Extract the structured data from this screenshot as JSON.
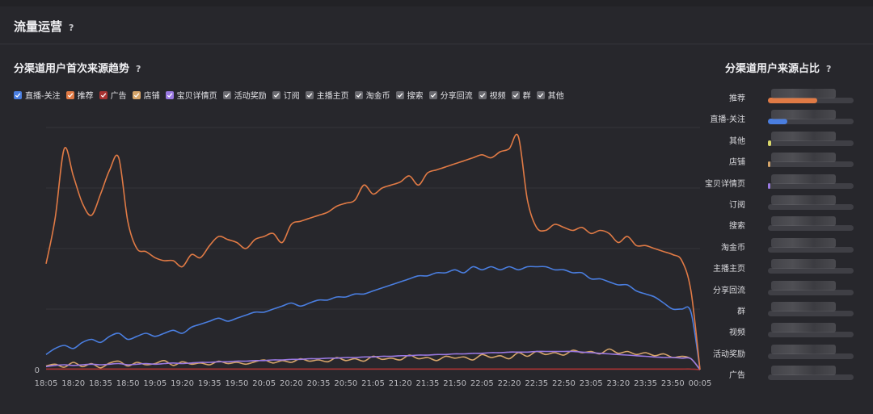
{
  "page": {
    "title": "流量运营",
    "help": "?"
  },
  "chart": {
    "title": "分渠道用户首次来源趋势",
    "help": "?"
  },
  "legend": [
    {
      "name": "直播-关注",
      "color": "#4a7ee0",
      "checked": true
    },
    {
      "name": "推荐",
      "color": "#e07a45",
      "checked": true
    },
    {
      "name": "广告",
      "color": "#a83232",
      "checked": true
    },
    {
      "name": "店铺",
      "color": "#d6a56a",
      "checked": true
    },
    {
      "name": "宝贝详情页",
      "color": "#9a79e2",
      "checked": true
    },
    {
      "name": "活动奖励",
      "color": "#6a6a70",
      "checked": true
    },
    {
      "name": "订阅",
      "color": "#6a6a70",
      "checked": true
    },
    {
      "name": "主播主页",
      "color": "#6a6a70",
      "checked": true
    },
    {
      "name": "淘金币",
      "color": "#6a6a70",
      "checked": true
    },
    {
      "name": "搜索",
      "color": "#6a6a70",
      "checked": true
    },
    {
      "name": "分享回流",
      "color": "#6a6a70",
      "checked": true
    },
    {
      "name": "视频",
      "color": "#6a6a70",
      "checked": true
    },
    {
      "name": "群",
      "color": "#6a6a70",
      "checked": true
    },
    {
      "name": "其他",
      "color": "#6a6a70",
      "checked": true
    }
  ],
  "chart_data": {
    "type": "line",
    "title": "分渠道用户首次来源趋势",
    "xlabel": "",
    "ylabel": "",
    "ylim": [
      0,
      400
    ],
    "yticks": [
      0
    ],
    "x": [
      "18:05",
      "18:10",
      "18:15",
      "18:20",
      "18:25",
      "18:30",
      "18:35",
      "18:40",
      "18:45",
      "18:50",
      "18:55",
      "19:00",
      "19:05",
      "19:10",
      "19:15",
      "19:20",
      "19:25",
      "19:30",
      "19:35",
      "19:40",
      "19:45",
      "19:50",
      "19:55",
      "20:00",
      "20:05",
      "20:10",
      "20:15",
      "20:20",
      "20:25",
      "20:30",
      "20:35",
      "20:40",
      "20:45",
      "20:50",
      "20:55",
      "21:00",
      "21:05",
      "21:10",
      "21:15",
      "21:20",
      "21:25",
      "21:30",
      "21:35",
      "21:40",
      "21:45",
      "21:50",
      "21:55",
      "22:00",
      "22:05",
      "22:10",
      "22:15",
      "22:20",
      "22:25",
      "22:30",
      "22:35",
      "22:40",
      "22:45",
      "22:50",
      "22:55",
      "23:00",
      "23:05",
      "23:10",
      "23:15",
      "23:20",
      "23:25",
      "23:30",
      "23:35",
      "23:40",
      "23:45",
      "23:50",
      "23:55",
      "00:00",
      "00:05"
    ],
    "xticks": [
      "18:05",
      "18:20",
      "18:35",
      "18:50",
      "19:05",
      "19:20",
      "19:35",
      "19:50",
      "20:05",
      "20:20",
      "20:35",
      "20:50",
      "21:05",
      "21:20",
      "21:35",
      "21:50",
      "22:05",
      "22:20",
      "22:35",
      "22:50",
      "23:05",
      "23:20",
      "23:35",
      "23:50",
      "00:05"
    ],
    "series": [
      {
        "name": "推荐",
        "color": "#e07a45",
        "values": [
          175,
          250,
          365,
          320,
          275,
          255,
          290,
          330,
          350,
          245,
          200,
          195,
          185,
          180,
          180,
          170,
          190,
          185,
          205,
          220,
          215,
          210,
          200,
          215,
          220,
          225,
          210,
          240,
          245,
          250,
          255,
          260,
          270,
          275,
          280,
          305,
          290,
          300,
          305,
          310,
          320,
          305,
          325,
          330,
          335,
          340,
          345,
          350,
          355,
          350,
          360,
          365,
          385,
          280,
          235,
          230,
          240,
          235,
          230,
          235,
          225,
          230,
          225,
          210,
          220,
          205,
          205,
          200,
          195,
          190,
          180,
          130,
          0
        ]
      },
      {
        "name": "直播-关注",
        "color": "#4a7ee0",
        "values": [
          25,
          35,
          40,
          35,
          45,
          50,
          45,
          55,
          60,
          50,
          55,
          60,
          55,
          60,
          65,
          60,
          70,
          75,
          80,
          85,
          80,
          85,
          90,
          95,
          95,
          100,
          105,
          110,
          105,
          110,
          115,
          115,
          120,
          120,
          125,
          125,
          130,
          135,
          140,
          145,
          150,
          155,
          155,
          160,
          160,
          165,
          160,
          170,
          165,
          170,
          165,
          170,
          165,
          170,
          170,
          170,
          165,
          165,
          160,
          160,
          150,
          150,
          145,
          140,
          140,
          130,
          125,
          120,
          110,
          100,
          100,
          95,
          0
        ]
      },
      {
        "name": "宝贝详情页",
        "color": "#9a79e2",
        "values": [
          5,
          7,
          8,
          7,
          8,
          9,
          8,
          9,
          10,
          8,
          9,
          10,
          9,
          10,
          11,
          10,
          11,
          12,
          12,
          13,
          13,
          14,
          14,
          15,
          15,
          16,
          16,
          17,
          17,
          18,
          18,
          19,
          19,
          20,
          20,
          21,
          21,
          22,
          22,
          23,
          23,
          24,
          24,
          25,
          25,
          26,
          26,
          27,
          27,
          28,
          28,
          29,
          29,
          29,
          30,
          30,
          30,
          30,
          30,
          29,
          28,
          27,
          26,
          25,
          24,
          23,
          22,
          21,
          20,
          20,
          19,
          18,
          0
        ]
      },
      {
        "name": "店铺",
        "color": "#d6a56a",
        "values": [
          6,
          9,
          4,
          12,
          5,
          10,
          3,
          11,
          14,
          6,
          12,
          8,
          10,
          15,
          7,
          13,
          9,
          11,
          8,
          14,
          10,
          12,
          9,
          13,
          16,
          11,
          15,
          12,
          18,
          14,
          16,
          13,
          20,
          15,
          18,
          14,
          22,
          17,
          19,
          16,
          24,
          18,
          20,
          15,
          22,
          19,
          21,
          16,
          25,
          20,
          23,
          18,
          28,
          22,
          30,
          25,
          28,
          24,
          32,
          28,
          30,
          26,
          34,
          27,
          30,
          25,
          28,
          23,
          26,
          20,
          22,
          18,
          0
        ]
      },
      {
        "name": "广告",
        "color": "#a83232",
        "values": [
          1,
          1,
          1,
          1,
          1,
          1,
          1,
          1,
          1,
          1,
          1,
          1,
          1,
          1,
          1,
          1,
          1,
          1,
          1,
          1,
          1,
          1,
          1,
          1,
          1,
          1,
          1,
          1,
          1,
          1,
          1,
          1,
          1,
          1,
          1,
          1,
          1,
          1,
          1,
          1,
          1,
          1,
          1,
          1,
          1,
          1,
          1,
          1,
          1,
          1,
          1,
          1,
          1,
          1,
          1,
          1,
          1,
          1,
          1,
          1,
          1,
          1,
          1,
          1,
          1,
          1,
          1,
          1,
          1,
          1,
          1,
          1,
          0
        ]
      }
    ]
  },
  "share": {
    "title": "分渠道用户来源占比",
    "help": "?",
    "items": [
      {
        "label": "推荐",
        "fraction": 0.58,
        "color": "#e07a45"
      },
      {
        "label": "直播-关注",
        "fraction": 0.23,
        "color": "#4a7ee0"
      },
      {
        "label": "其他",
        "fraction": 0.04,
        "color": "#d9d76a"
      },
      {
        "label": "店铺",
        "fraction": 0.03,
        "color": "#d6a56a"
      },
      {
        "label": "宝贝详情页",
        "fraction": 0.03,
        "color": "#9a79e2"
      },
      {
        "label": "订阅",
        "fraction": 0.0,
        "color": "#6a6a70"
      },
      {
        "label": "搜索",
        "fraction": 0.0,
        "color": "#6a6a70"
      },
      {
        "label": "淘金币",
        "fraction": 0.0,
        "color": "#6a6a70"
      },
      {
        "label": "主播主页",
        "fraction": 0.0,
        "color": "#6a6a70"
      },
      {
        "label": "分享回流",
        "fraction": 0.0,
        "color": "#6a6a70"
      },
      {
        "label": "群",
        "fraction": 0.0,
        "color": "#6a6a70"
      },
      {
        "label": "视频",
        "fraction": 0.0,
        "color": "#6a6a70"
      },
      {
        "label": "活动奖励",
        "fraction": 0.0,
        "color": "#6a6a70"
      },
      {
        "label": "广告",
        "fraction": 0.0,
        "color": "#6a6a70"
      }
    ]
  }
}
